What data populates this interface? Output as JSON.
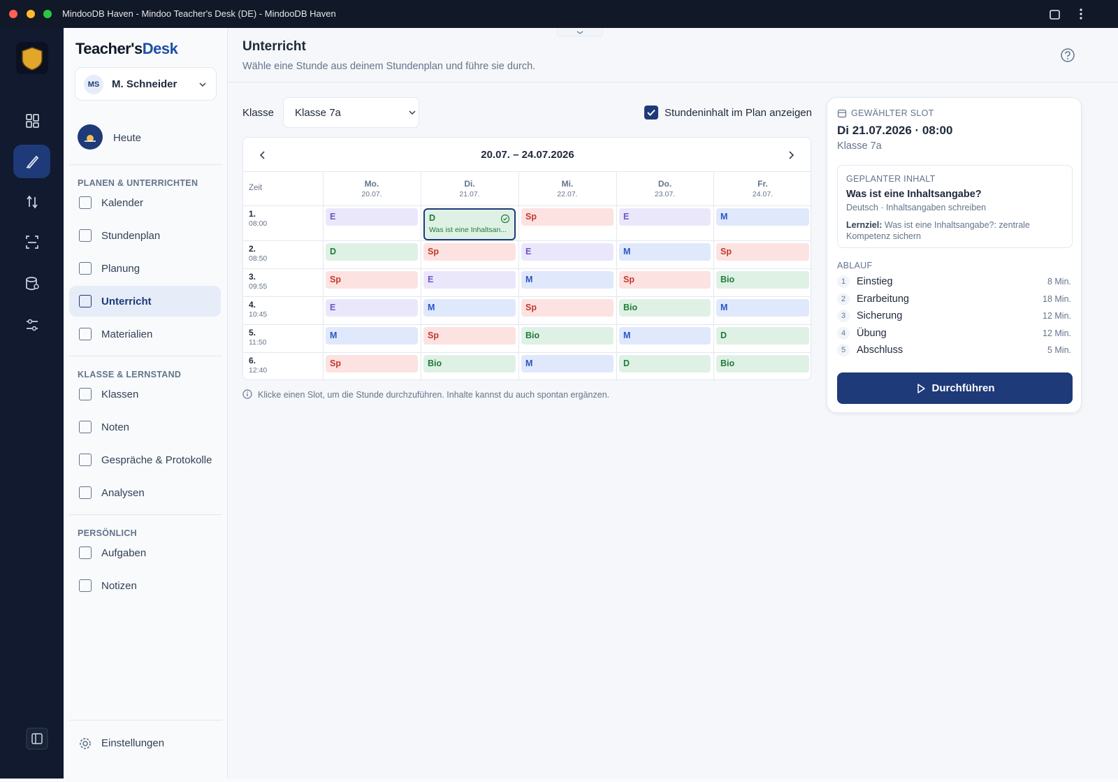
{
  "window": {
    "title": "MindooDB Haven - Mindoo Teacher's Desk (DE) - MindooDB Haven"
  },
  "sidebar": {
    "brand_main": "Teacher's",
    "brand_accent": "Desk",
    "user": {
      "initials": "MS",
      "name": "M. Schneider"
    },
    "today": "Heute",
    "sections": [
      {
        "title": "PLANEN & UNTERRICHTEN",
        "items": [
          "Kalender",
          "Stundenplan",
          "Planung",
          "Unterricht",
          "Materialien"
        ]
      },
      {
        "title": "KLASSE & LERNSTAND",
        "items": [
          "Klassen",
          "Noten",
          "Gespräche & Protokolle",
          "Analysen"
        ]
      },
      {
        "title": "PERSÖNLICH",
        "items": [
          "Aufgaben",
          "Notizen"
        ]
      }
    ],
    "settings": "Einstellungen"
  },
  "header": {
    "title": "Unterricht",
    "subtitle": "Wähle eine Stunde aus deinem Stundenplan und führe sie durch."
  },
  "toolbar": {
    "class_label": "Klasse",
    "class_value": "Klasse 7a",
    "show_content": "Stundeninhalt im Plan anzeigen"
  },
  "schedule": {
    "range": "20.07. – 24.07.2026",
    "time_header": "Zeit",
    "days": [
      {
        "name": "Mo.",
        "date": "20.07."
      },
      {
        "name": "Di.",
        "date": "21.07."
      },
      {
        "name": "Mi.",
        "date": "22.07."
      },
      {
        "name": "Do.",
        "date": "23.07."
      },
      {
        "name": "Fr.",
        "date": "24.07."
      }
    ],
    "subject_tones": {
      "E": "purple",
      "D": "green",
      "Sp": "red",
      "M": "blue",
      "Bio": "green"
    },
    "periods": [
      {
        "number": "1.",
        "time": "08:00",
        "slots": [
          "E",
          {
            "subject": "D",
            "content": "Was ist eine Inhaltsan..."
          },
          "Sp",
          "E",
          "M"
        ]
      },
      {
        "number": "2.",
        "time": "08:50",
        "slots": [
          "D",
          "Sp",
          "E",
          "M",
          "Sp"
        ]
      },
      {
        "number": "3.",
        "time": "09:55",
        "slots": [
          "Sp",
          "E",
          "M",
          "Sp",
          "Bio"
        ]
      },
      {
        "number": "4.",
        "time": "10:45",
        "slots": [
          "E",
          "M",
          "Sp",
          "Bio",
          "M"
        ]
      },
      {
        "number": "5.",
        "time": "11:50",
        "slots": [
          "M",
          "Sp",
          "Bio",
          "M",
          "D"
        ]
      },
      {
        "number": "6.",
        "time": "12:40",
        "slots": [
          "Sp",
          "Bio",
          "M",
          "D",
          "Bio"
        ]
      }
    ],
    "hint": "Klicke einen Slot, um die Stunde durchzuführen. Inhalte kannst du auch spontan ergänzen."
  },
  "panel": {
    "label": "GEWÄHLTER SLOT",
    "slot": "Di 21.07.2026 · 08:00",
    "class": "Klasse 7a",
    "content_label": "GEPLANTER INHALT",
    "content_title": "Was ist eine Inhaltsangabe?",
    "content_subject": "Deutsch · Inhaltsangaben schreiben",
    "goal_label": "Lernziel:",
    "goal_text": "Was ist eine Inhaltsangabe?: zentrale Kompetenz sichern",
    "flow_label": "ABLAUF",
    "steps": [
      {
        "number": "1",
        "name": "Einstieg",
        "duration": "8 Min."
      },
      {
        "number": "2",
        "name": "Erarbeitung",
        "duration": "18 Min."
      },
      {
        "number": "3",
        "name": "Sicherung",
        "duration": "12 Min."
      },
      {
        "number": "4",
        "name": "Übung",
        "duration": "12 Min."
      },
      {
        "number": "5",
        "name": "Abschluss",
        "duration": "5 Min."
      }
    ],
    "button": "Durchführen"
  }
}
